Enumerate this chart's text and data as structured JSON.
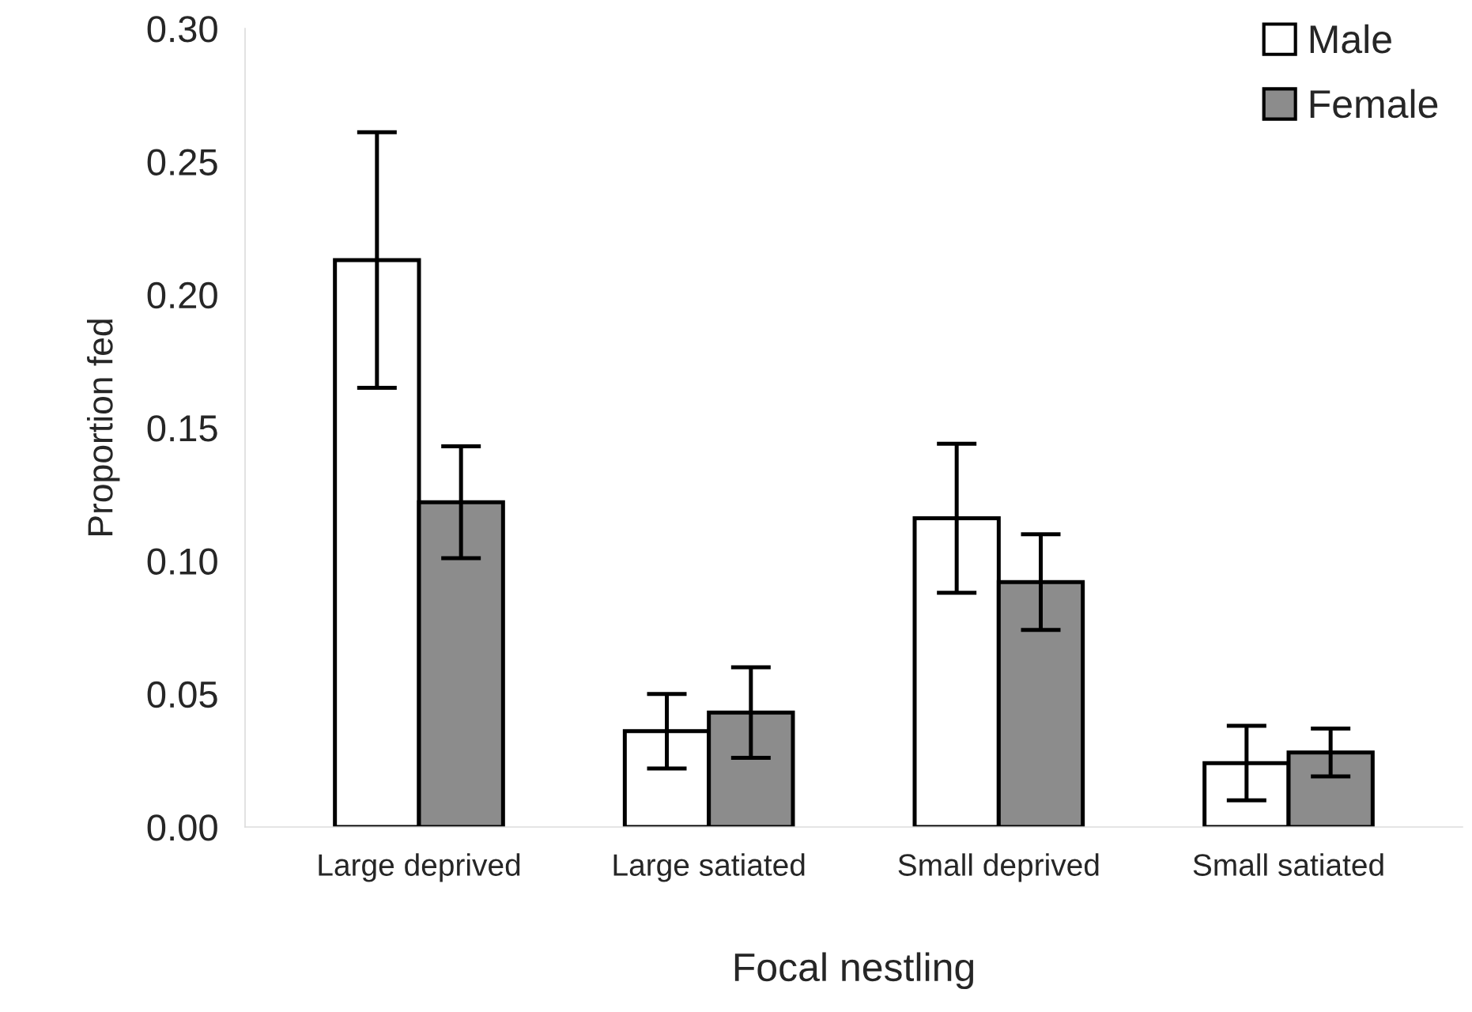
{
  "chart_data": {
    "type": "bar",
    "xlabel": "Focal nestling",
    "ylabel": "Proportion fed",
    "categories": [
      "Large deprived",
      "Large satiated",
      "Small deprived",
      "Small satiated"
    ],
    "series": [
      {
        "name": "Male",
        "color": "#ffffff",
        "values": [
          0.213,
          0.036,
          0.116,
          0.024
        ],
        "errors": [
          0.048,
          0.014,
          0.028,
          0.014
        ]
      },
      {
        "name": "Female",
        "color": "#8c8c8c",
        "values": [
          0.122,
          0.043,
          0.092,
          0.028
        ],
        "errors": [
          0.021,
          0.017,
          0.018,
          0.009
        ]
      }
    ],
    "ylim": [
      0,
      0.3
    ],
    "yticks": [
      {
        "value": 0,
        "label": "0.00"
      },
      {
        "value": 0.05,
        "label": "0.05"
      },
      {
        "value": 0.1,
        "label": "0.10"
      },
      {
        "value": 0.15,
        "label": "0.15"
      },
      {
        "value": 0.2,
        "label": "0.20"
      },
      {
        "value": 0.25,
        "label": "0.25"
      },
      {
        "value": 0.3,
        "label": "0.30"
      }
    ],
    "grid": false,
    "legend": "top right"
  }
}
